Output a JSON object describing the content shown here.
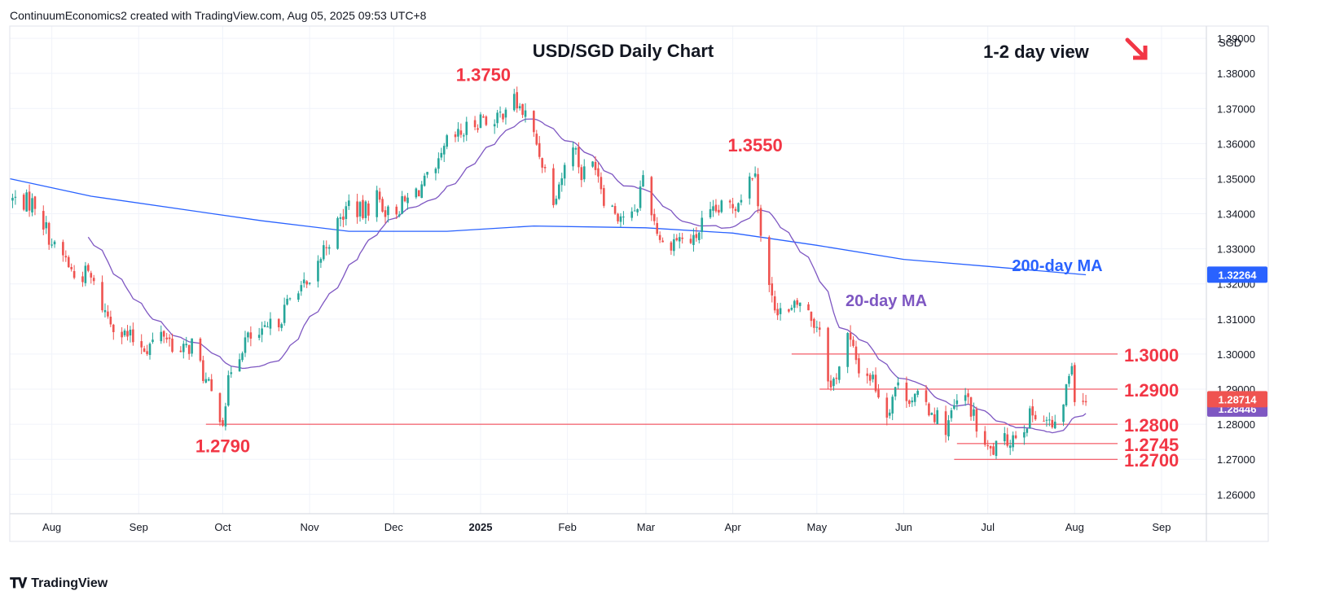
{
  "header": {
    "attribution": "ContinuumEconomics2 created with TradingView.com, Aug 05, 2025 09:53 UTC+8"
  },
  "footer": {
    "brand": "TradingView"
  },
  "colors": {
    "up": "#26a69a",
    "down": "#ef5350",
    "ma20": "#7e57c2",
    "ma200": "#2962ff",
    "level": "#f23645",
    "grid": "#f0f3fa",
    "axis_text": "#131722",
    "last_price_bg": "#ef5350",
    "ma200_badge": "#2962ff",
    "ma20_badge": "#7e57c2"
  },
  "chart_data": {
    "type": "candlestick",
    "title": "USD/SGD Daily Chart",
    "view_label": "1-2 day view",
    "view_icon": "arrow-down-right-icon",
    "currency_label": "SGD",
    "y_ticks": [
      "1.26000",
      "1.27000",
      "1.28000",
      "1.29000",
      "1.30000",
      "1.31000",
      "1.32000",
      "1.33000",
      "1.34000",
      "1.35000",
      "1.36000",
      "1.37000",
      "1.38000",
      "1.39000"
    ],
    "ylim": [
      1.2545,
      1.3935
    ],
    "x_ticks": [
      {
        "label": "Aug",
        "date": "2024-08-01"
      },
      {
        "label": "Sep",
        "date": "2024-09-01"
      },
      {
        "label": "Oct",
        "date": "2024-10-01"
      },
      {
        "label": "Nov",
        "date": "2024-11-01"
      },
      {
        "label": "Dec",
        "date": "2024-12-01"
      },
      {
        "label": "2025",
        "date": "2025-01-01"
      },
      {
        "label": "Feb",
        "date": "2025-02-01"
      },
      {
        "label": "Mar",
        "date": "2025-03-01"
      },
      {
        "label": "Apr",
        "date": "2025-04-01"
      },
      {
        "label": "May",
        "date": "2025-05-01"
      },
      {
        "label": "Jun",
        "date": "2025-06-01"
      },
      {
        "label": "Jul",
        "date": "2025-07-01"
      },
      {
        "label": "Aug",
        "date": "2025-08-01"
      },
      {
        "label": "Sep",
        "date": "2025-09-01"
      }
    ],
    "xlim": [
      "2024-07-17",
      "2025-09-17"
    ],
    "close_path": [
      [
        "2024-07-18",
        1.344
      ],
      [
        "2024-07-26",
        1.343
      ],
      [
        "2024-08-02",
        1.33
      ],
      [
        "2024-08-06",
        1.327
      ],
      [
        "2024-08-09",
        1.322
      ],
      [
        "2024-08-14",
        1.323
      ],
      [
        "2024-08-20",
        1.312
      ],
      [
        "2024-08-26",
        1.306
      ],
      [
        "2024-08-30",
        1.304
      ],
      [
        "2024-09-04",
        1.302
      ],
      [
        "2024-09-10",
        1.306
      ],
      [
        "2024-09-16",
        1.3
      ],
      [
        "2024-09-20",
        1.303
      ],
      [
        "2024-09-25",
        1.292
      ],
      [
        "2024-09-30",
        1.283
      ],
      [
        "2024-10-01",
        1.282
      ],
      [
        "2024-10-04",
        1.296
      ],
      [
        "2024-10-09",
        1.304
      ],
      [
        "2024-10-15",
        1.305
      ],
      [
        "2024-10-22",
        1.311
      ],
      [
        "2024-10-28",
        1.32
      ],
      [
        "2024-11-01",
        1.318
      ],
      [
        "2024-11-06",
        1.33
      ],
      [
        "2024-11-12",
        1.338
      ],
      [
        "2024-11-15",
        1.343
      ],
      [
        "2024-11-20",
        1.34
      ],
      [
        "2024-11-25",
        1.345
      ],
      [
        "2024-11-29",
        1.34
      ],
      [
        "2024-12-05",
        1.343
      ],
      [
        "2024-12-11",
        1.348
      ],
      [
        "2024-12-16",
        1.351
      ],
      [
        "2024-12-20",
        1.36
      ],
      [
        "2024-12-24",
        1.362
      ],
      [
        "2024-12-27",
        1.364
      ],
      [
        "2025-01-02",
        1.368
      ],
      [
        "2025-01-06",
        1.365
      ],
      [
        "2025-01-10",
        1.371
      ],
      [
        "2025-01-13",
        1.372
      ],
      [
        "2025-01-17",
        1.368
      ],
      [
        "2025-01-21",
        1.36
      ],
      [
        "2025-01-27",
        1.345
      ],
      [
        "2025-01-31",
        1.353
      ],
      [
        "2025-02-03",
        1.361
      ],
      [
        "2025-02-06",
        1.351
      ],
      [
        "2025-02-11",
        1.355
      ],
      [
        "2025-02-14",
        1.345
      ],
      [
        "2025-02-19",
        1.34
      ],
      [
        "2025-02-25",
        1.339
      ],
      [
        "2025-02-28",
        1.351
      ],
      [
        "2025-03-04",
        1.338
      ],
      [
        "2025-03-07",
        1.331
      ],
      [
        "2025-03-12",
        1.333
      ],
      [
        "2025-03-18",
        1.332
      ],
      [
        "2025-03-21",
        1.337
      ],
      [
        "2025-03-27",
        1.341
      ],
      [
        "2025-04-02",
        1.343
      ],
      [
        "2025-04-07",
        1.35
      ],
      [
        "2025-04-09",
        1.354
      ],
      [
        "2025-04-11",
        1.333
      ],
      [
        "2025-04-15",
        1.315
      ],
      [
        "2025-04-21",
        1.311
      ],
      [
        "2025-04-25",
        1.315
      ],
      [
        "2025-04-30",
        1.309
      ],
      [
        "2025-05-02",
        1.308
      ],
      [
        "2025-05-06",
        1.29
      ],
      [
        "2025-05-09",
        1.297
      ],
      [
        "2025-05-12",
        1.305
      ],
      [
        "2025-05-16",
        1.296
      ],
      [
        "2025-05-21",
        1.293
      ],
      [
        "2025-05-26",
        1.283
      ],
      [
        "2025-05-29",
        1.291
      ],
      [
        "2025-06-03",
        1.288
      ],
      [
        "2025-06-06",
        1.287
      ],
      [
        "2025-06-11",
        1.284
      ],
      [
        "2025-06-16",
        1.279
      ],
      [
        "2025-06-20",
        1.286
      ],
      [
        "2025-06-24",
        1.287
      ],
      [
        "2025-06-27",
        1.279
      ],
      [
        "2025-07-01",
        1.272
      ],
      [
        "2025-07-04",
        1.273
      ],
      [
        "2025-07-09",
        1.276
      ],
      [
        "2025-07-14",
        1.28
      ],
      [
        "2025-07-18",
        1.284
      ],
      [
        "2025-07-22",
        1.281
      ],
      [
        "2025-07-25",
        1.278
      ],
      [
        "2025-07-29",
        1.29
      ],
      [
        "2025-07-31",
        1.298
      ],
      [
        "2025-08-01",
        1.289
      ],
      [
        "2025-08-05",
        1.2871
      ]
    ],
    "annotations": [
      {
        "label": "1.3750",
        "date": "2025-01-02",
        "value": 1.375
      },
      {
        "label": "1.3550",
        "date": "2025-04-09",
        "value": 1.355
      },
      {
        "label": "1.2790",
        "date": "2024-10-01",
        "value": 1.279
      }
    ],
    "levels": [
      {
        "label": "1.3000",
        "value": 1.3,
        "from": "2025-04-22"
      },
      {
        "label": "1.2900",
        "value": 1.29,
        "from": "2025-05-02"
      },
      {
        "label": "1.2800",
        "value": 1.28,
        "from": "2024-09-25"
      },
      {
        "label": "1.2745",
        "value": 1.2745,
        "from": "2025-06-20"
      },
      {
        "label": "1.2700",
        "value": 1.27,
        "from": "2025-06-19"
      }
    ],
    "ma200": {
      "label": "200-day MA",
      "points": [
        [
          "2024-07-17",
          1.35
        ],
        [
          "2024-08-15",
          1.345
        ],
        [
          "2024-10-15",
          1.338
        ],
        [
          "2024-11-15",
          1.335
        ],
        [
          "2024-12-20",
          1.335
        ],
        [
          "2025-01-20",
          1.3365
        ],
        [
          "2025-03-01",
          1.336
        ],
        [
          "2025-04-01",
          1.3345
        ],
        [
          "2025-05-01",
          1.331
        ],
        [
          "2025-06-01",
          1.327
        ],
        [
          "2025-07-01",
          1.325
        ],
        [
          "2025-08-05",
          1.3226
        ]
      ],
      "badge": "1.32264"
    },
    "ma20": {
      "label": "20-day MA",
      "badge": "1.28446"
    },
    "last_price": {
      "value": 1.28714,
      "label": "1.28714"
    }
  }
}
